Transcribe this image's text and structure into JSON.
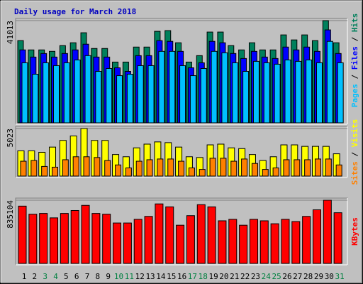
{
  "chart_data": {
    "type": "bar",
    "title": "Daily usage for March 2018",
    "legend_separator": " / ",
    "categories": [
      "1",
      "2",
      "3",
      "4",
      "5",
      "6",
      "7",
      "8",
      "9",
      "10",
      "11",
      "12",
      "13",
      "14",
      "15",
      "16",
      "17",
      "18",
      "19",
      "20",
      "21",
      "22",
      "23",
      "24",
      "25",
      "26",
      "27",
      "28",
      "29",
      "30",
      "31"
    ],
    "category_colors": [
      "#000000",
      "#000000",
      "#008040",
      "#008040",
      "#000000",
      "#000000",
      "#000000",
      "#000000",
      "#000000",
      "#008040",
      "#008040",
      "#000000",
      "#000000",
      "#000000",
      "#000000",
      "#000000",
      "#008040",
      "#008040",
      "#000000",
      "#000000",
      "#000000",
      "#000000",
      "#000000",
      "#008040",
      "#008040",
      "#000000",
      "#000000",
      "#000000",
      "#000000",
      "#000000",
      "#008040"
    ],
    "panels": [
      {
        "ylim": [
          0,
          41013
        ],
        "yticks": [
          41013
        ],
        "series": [
          {
            "name": "Hits",
            "color": "#00805c",
            "values": [
              32983,
              29254,
              29254,
              28680,
              30975,
              32122,
              36137,
              29828,
              29828,
              24378,
              24378,
              30401,
              30401,
              36711,
              36998,
              32122,
              24378,
              26960,
              36424,
              36424,
              30975,
              29254,
              32122,
              29254,
              29254,
              35277,
              33270,
              35277,
              32983,
              41013,
              32122
            ]
          },
          {
            "name": "Files",
            "color": "#0000ff",
            "values": [
              29254,
              26386,
              27820,
              26386,
              27820,
              29254,
              31548,
              26386,
              26386,
              22084,
              20650,
              26959,
              26959,
              32982,
              32695,
              28680,
              22084,
              24091,
              32695,
              32122,
              27820,
              25812,
              28680,
              26386,
              25812,
              30401,
              29254,
              30401,
              28680,
              37284,
              27820
            ]
          },
          {
            "name": "Pages",
            "color": "#00c0ff",
            "values": [
              24091,
              19502,
              24091,
              22944,
              24091,
              25238,
              26959,
              20650,
              21797,
              18929,
              19502,
              22944,
              22944,
              28680,
              28680,
              22944,
              18929,
              21797,
              28680,
              28106,
              24091,
              20650,
              24665,
              24091,
              23518,
              25238,
              24665,
              25238,
              24091,
              32695,
              24091
            ]
          }
        ]
      },
      {
        "ylim": [
          0,
          5023
        ],
        "yticks": [
          5023
        ],
        "series": [
          {
            "name": "Visits",
            "color": "#ffff00",
            "values": [
              2669,
              2669,
              2512,
              3061,
              3767,
              4238,
              5023,
              3767,
              3767,
              2276,
              2041,
              2982,
              3375,
              3610,
              3532,
              3061,
              2041,
              1962,
              3296,
              3375,
              2982,
              2904,
              2276,
              1648,
              2041,
              3296,
              3296,
              3139,
              3139,
              3139,
              2355
            ]
          },
          {
            "name": "Sites",
            "color": "#ff8000",
            "values": [
              1570,
              1648,
              1020,
              942,
              1727,
              2041,
              2041,
              1962,
              1648,
              1177,
              863,
              1570,
              1727,
              1805,
              1805,
              1570,
              863,
              706,
              1884,
              1884,
              1570,
              1805,
              1334,
              706,
              863,
              1727,
              1727,
              1727,
              1805,
              1805,
              1177
            ]
          }
        ]
      },
      {
        "ylim": [
          0,
          835104
        ],
        "yticks": [
          835104
        ],
        "series": [
          {
            "name": "KBytes",
            "color": "#ff0000",
            "values": [
              757000,
              650600,
              660300,
              602000,
              660300,
              699100,
              767100,
              660300,
              650600,
              534100,
              534100,
              582600,
              621400,
              786500,
              747700,
              504900,
              631200,
              776800,
              747700,
              563200,
              582600,
              504900,
              582600,
              563200,
              524300,
              582600,
              553500,
              621400,
              708800,
              835104,
              670000
            ]
          }
        ]
      }
    ]
  }
}
